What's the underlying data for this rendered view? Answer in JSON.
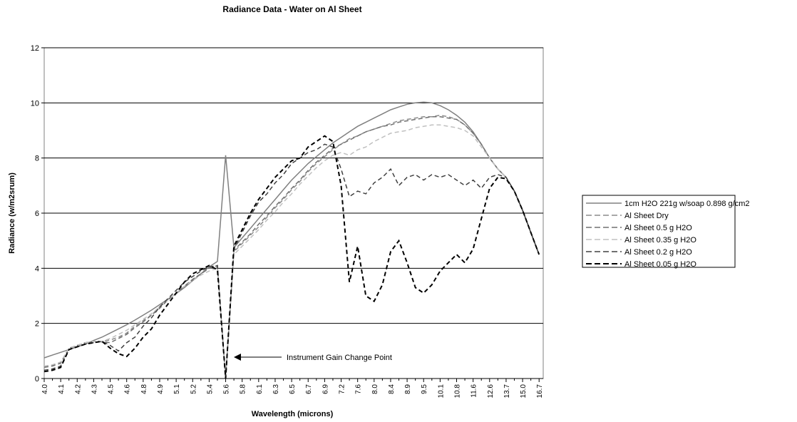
{
  "chart_data": {
    "type": "line",
    "title": "Radiance Data - Water on Al Sheet",
    "x_label": "Wavelength (microns)",
    "y_label": "Radiance (w/m2srum)",
    "annotation": "Instrument Gain Change Point",
    "categories": [
      "4.0",
      null,
      "4.1",
      null,
      "4.2",
      null,
      "4.3",
      null,
      "4.5",
      null,
      "4.6",
      null,
      "4.8",
      null,
      "4.9",
      null,
      "5.1",
      null,
      "5.2",
      null,
      "5.4",
      null,
      "5.6",
      null,
      "5.8",
      null,
      "6.1",
      null,
      "6.3",
      null,
      "6.5",
      null,
      "6.7",
      null,
      "6.9",
      null,
      "7.2",
      null,
      "7.6",
      null,
      "8.0",
      null,
      "8.4",
      null,
      "8.9",
      null,
      "9.5",
      null,
      "10.1",
      null,
      "10.8",
      null,
      "11.6",
      null,
      "12.6",
      null,
      "13.7",
      null,
      "15.0",
      null,
      "16.7"
    ],
    "ylim": [
      0,
      12
    ],
    "yticks": [
      0,
      2,
      4,
      6,
      8,
      10,
      12
    ],
    "grid": true,
    "legend": "right",
    "series": [
      {
        "name": "1cm H2O 221g w/soap 0.898 g/cm2",
        "color": "#808080",
        "dashed": false,
        "values": [
          0.75,
          0.85,
          0.95,
          1.05,
          1.15,
          1.25,
          1.38,
          1.5,
          1.65,
          1.8,
          1.95,
          2.12,
          2.3,
          2.48,
          2.68,
          2.88,
          3.08,
          3.3,
          3.55,
          3.8,
          4.05,
          4.25,
          8.1,
          4.75,
          5.1,
          5.45,
          5.8,
          6.15,
          6.5,
          6.85,
          7.2,
          7.5,
          7.8,
          8.05,
          8.3,
          8.55,
          8.75,
          8.95,
          9.15,
          9.3,
          9.45,
          9.6,
          9.75,
          9.85,
          9.95,
          10.0,
          10.03,
          10.0,
          9.9,
          9.75,
          9.55,
          9.3,
          8.95,
          8.5,
          8.0,
          7.6,
          7.3,
          6.8,
          6.1,
          5.3,
          4.5
        ]
      },
      {
        "name": "Al Sheet Dry",
        "color": "#8c8c8c",
        "dashed": true,
        "values": [
          0.4,
          0.45,
          0.55,
          1.1,
          1.2,
          1.3,
          1.35,
          1.35,
          1.4,
          1.5,
          1.65,
          1.9,
          2.1,
          2.3,
          2.6,
          2.85,
          3.1,
          3.35,
          3.6,
          3.8,
          4.0,
          4.05,
          0,
          4.6,
          4.9,
          5.2,
          5.5,
          5.85,
          6.2,
          6.5,
          6.85,
          7.15,
          7.5,
          7.8,
          8.05,
          8.3,
          8.5,
          8.7,
          8.8,
          8.95,
          9.05,
          9.15,
          9.25,
          9.35,
          9.4,
          9.45,
          9.5,
          9.5,
          9.55,
          9.5,
          9.4,
          9.2,
          8.9,
          8.5,
          8.0,
          7.6,
          7.3,
          6.8,
          6.1,
          5.3,
          4.5
        ]
      },
      {
        "name": "Al Sheet 0.5 g H2O",
        "color": "#707070",
        "dashed": true,
        "values": [
          0.42,
          0.47,
          0.57,
          1.1,
          1.2,
          1.3,
          1.35,
          1.33,
          1.3,
          1.45,
          1.6,
          1.85,
          2.05,
          2.3,
          2.55,
          2.85,
          3.1,
          3.35,
          3.6,
          3.8,
          4.0,
          4.1,
          0,
          4.65,
          4.95,
          5.25,
          5.6,
          5.9,
          6.25,
          6.55,
          6.9,
          7.2,
          7.55,
          7.85,
          8.1,
          8.35,
          8.5,
          8.65,
          8.8,
          8.95,
          9.05,
          9.15,
          9.2,
          9.3,
          9.35,
          9.4,
          9.45,
          9.5,
          9.5,
          9.45,
          9.4,
          9.2,
          8.9,
          8.5,
          8.0,
          7.6,
          7.3,
          6.8,
          6.1,
          5.3,
          4.5
        ]
      },
      {
        "name": "Al Sheet 0.35 g H2O",
        "color": "#c0c0c0",
        "dashed": true,
        "values": [
          0.45,
          0.5,
          0.6,
          1.1,
          1.2,
          1.3,
          1.35,
          1.35,
          1.45,
          1.6,
          1.75,
          1.95,
          2.15,
          2.35,
          2.6,
          2.85,
          3.1,
          3.35,
          3.55,
          3.75,
          3.9,
          4.0,
          0,
          4.5,
          4.8,
          5.1,
          5.4,
          5.75,
          6.05,
          6.4,
          6.7,
          7.05,
          7.35,
          7.65,
          7.9,
          8.1,
          8.2,
          8.1,
          8.3,
          8.4,
          8.6,
          8.75,
          8.9,
          8.95,
          9.0,
          9.1,
          9.15,
          9.2,
          9.2,
          9.15,
          9.1,
          9.0,
          8.8,
          8.4,
          8.0,
          7.6,
          7.3,
          6.8,
          6.1,
          5.3,
          4.5
        ]
      },
      {
        "name": "Al Sheet 0.2 g H2O",
        "color": "#404040",
        "dashed": true,
        "values": [
          0.3,
          0.35,
          0.45,
          1.05,
          1.15,
          1.25,
          1.3,
          1.35,
          1.2,
          1.0,
          1.3,
          1.5,
          1.9,
          2.2,
          2.6,
          2.9,
          3.2,
          3.5,
          3.7,
          3.9,
          4.05,
          4.1,
          0,
          4.7,
          5.3,
          5.9,
          6.4,
          6.7,
          7.1,
          7.4,
          7.8,
          8.0,
          8.2,
          8.3,
          8.5,
          8.4,
          7.6,
          6.6,
          6.8,
          6.7,
          7.1,
          7.3,
          7.6,
          7.0,
          7.3,
          7.4,
          7.2,
          7.4,
          7.3,
          7.4,
          7.2,
          7.0,
          7.2,
          6.9,
          7.3,
          7.4,
          7.3,
          6.8,
          6.1,
          5.3,
          4.5
        ]
      },
      {
        "name": "Al Sheet 0.05 g H2O",
        "color": "#000000",
        "dashed": true,
        "values": [
          0.25,
          0.3,
          0.4,
          1.05,
          1.15,
          1.25,
          1.3,
          1.35,
          1.1,
          0.9,
          0.8,
          1.1,
          1.5,
          1.8,
          2.3,
          2.7,
          3.1,
          3.5,
          3.8,
          3.95,
          4.1,
          3.95,
          0,
          4.8,
          5.4,
          6.0,
          6.5,
          6.9,
          7.3,
          7.6,
          7.9,
          8.0,
          8.4,
          8.6,
          8.8,
          8.6,
          7.0,
          3.5,
          4.8,
          3.0,
          2.8,
          3.4,
          4.6,
          5.0,
          4.2,
          3.3,
          3.1,
          3.4,
          3.9,
          4.2,
          4.5,
          4.2,
          4.7,
          5.8,
          6.9,
          7.3,
          7.25,
          6.8,
          6.1,
          5.3,
          4.5
        ]
      }
    ]
  }
}
